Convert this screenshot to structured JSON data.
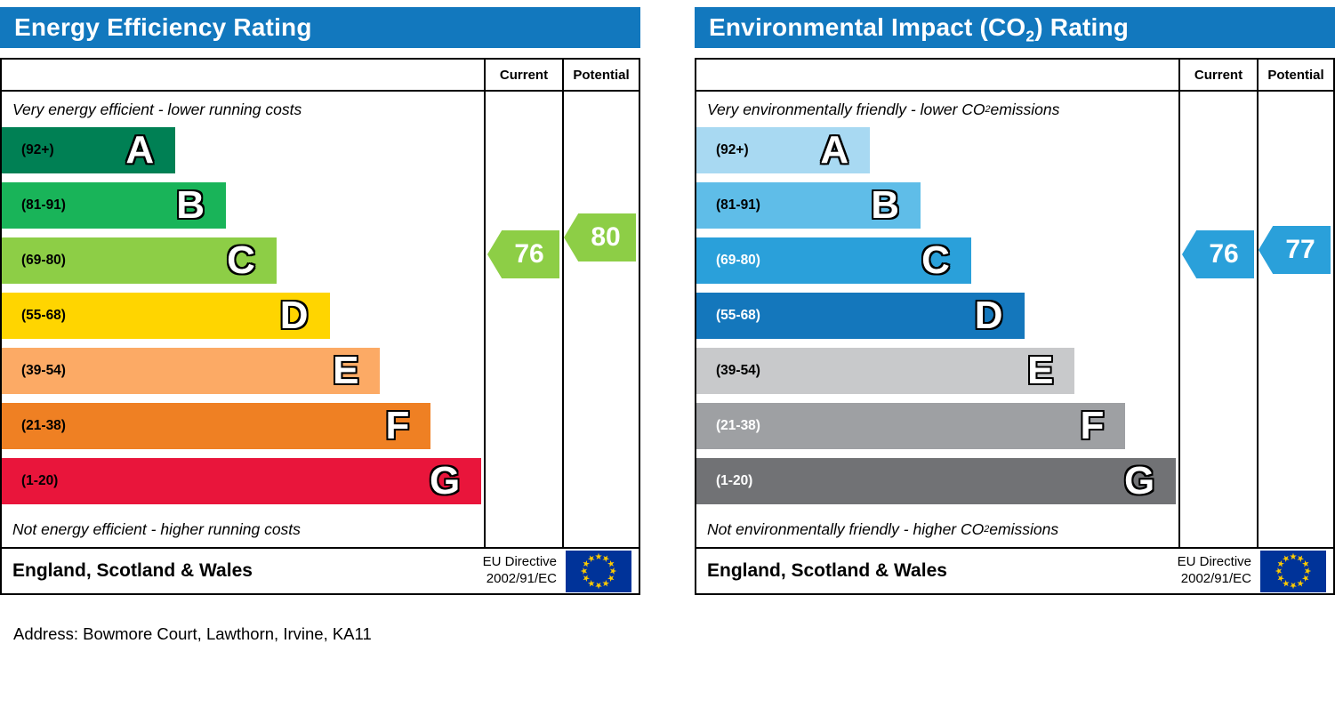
{
  "header_color": "#1278be",
  "eu_flag": {
    "blue": "#003399",
    "star": "#ffcc00"
  },
  "address": "Address: Bowmore Court, Lawthorn, Irvine, KA11",
  "chart_data": [
    {
      "type": "bar",
      "title": "Energy Efficiency Rating",
      "title_parts": [
        "Energy Efficiency Rating",
        "",
        ""
      ],
      "columns": [
        "Current",
        "Potential"
      ],
      "top_note_parts": [
        "Very energy efficient - lower running costs",
        "",
        ""
      ],
      "bottom_note_parts": [
        "Not energy efficient - higher running costs",
        "",
        ""
      ],
      "bands": [
        {
          "letter": "A",
          "range": "(92+)",
          "min": 92,
          "max": 100,
          "color": "#008054",
          "label_color": "#000000",
          "width_pct": 36
        },
        {
          "letter": "B",
          "range": "(81-91)",
          "min": 81,
          "max": 91,
          "color": "#19b459",
          "label_color": "#000000",
          "width_pct": 46.5
        },
        {
          "letter": "C",
          "range": "(69-80)",
          "min": 69,
          "max": 80,
          "color": "#8dce46",
          "label_color": "#000000",
          "width_pct": 57
        },
        {
          "letter": "D",
          "range": "(55-68)",
          "min": 55,
          "max": 68,
          "color": "#ffd500",
          "label_color": "#000000",
          "width_pct": 68
        },
        {
          "letter": "E",
          "range": "(39-54)",
          "min": 39,
          "max": 54,
          "color": "#fcaa65",
          "label_color": "#000000",
          "width_pct": 78.5
        },
        {
          "letter": "F",
          "range": "(21-38)",
          "min": 21,
          "max": 38,
          "color": "#ef8023",
          "label_color": "#000000",
          "width_pct": 89
        },
        {
          "letter": "G",
          "range": "(1-20)",
          "min": 1,
          "max": 20,
          "color": "#e9153b",
          "label_color": "#000000",
          "width_pct": 99.5
        }
      ],
      "current": 76,
      "potential": 80,
      "arrow_color": "#8dce46",
      "footer": "England, Scotland & Wales",
      "directive_lines": [
        "EU Directive",
        "2002/91/EC"
      ]
    },
    {
      "type": "bar",
      "title": "Environmental Impact (CO2) Rating",
      "title_parts": [
        "Environmental Impact (CO",
        "2",
        ") Rating"
      ],
      "columns": [
        "Current",
        "Potential"
      ],
      "top_note_parts": [
        "Very environmentally friendly - lower CO",
        "2",
        " emissions"
      ],
      "bottom_note_parts": [
        "Not environmentally friendly - higher CO",
        "2",
        " emissions"
      ],
      "bands": [
        {
          "letter": "A",
          "range": "(92+)",
          "min": 92,
          "max": 100,
          "color": "#a8d9f2",
          "label_color": "#000000",
          "width_pct": 36
        },
        {
          "letter": "B",
          "range": "(81-91)",
          "min": 81,
          "max": 91,
          "color": "#5fbde8",
          "label_color": "#000000",
          "width_pct": 46.5
        },
        {
          "letter": "C",
          "range": "(69-80)",
          "min": 69,
          "max": 80,
          "color": "#2aa0da",
          "label_color": "#ffffff",
          "width_pct": 57
        },
        {
          "letter": "D",
          "range": "(55-68)",
          "min": 55,
          "max": 68,
          "color": "#1477bc",
          "label_color": "#ffffff",
          "width_pct": 68
        },
        {
          "letter": "E",
          "range": "(39-54)",
          "min": 39,
          "max": 54,
          "color": "#c8c9cb",
          "label_color": "#000000",
          "width_pct": 78.5
        },
        {
          "letter": "F",
          "range": "(21-38)",
          "min": 21,
          "max": 38,
          "color": "#9ea0a3",
          "label_color": "#ffffff",
          "width_pct": 89
        },
        {
          "letter": "G",
          "range": "(1-20)",
          "min": 1,
          "max": 20,
          "color": "#717275",
          "label_color": "#ffffff",
          "width_pct": 99.5
        }
      ],
      "current": 76,
      "potential": 77,
      "arrow_color": "#2aa0da",
      "footer": "England, Scotland & Wales",
      "directive_lines": [
        "EU Directive",
        "2002/91/EC"
      ]
    }
  ]
}
